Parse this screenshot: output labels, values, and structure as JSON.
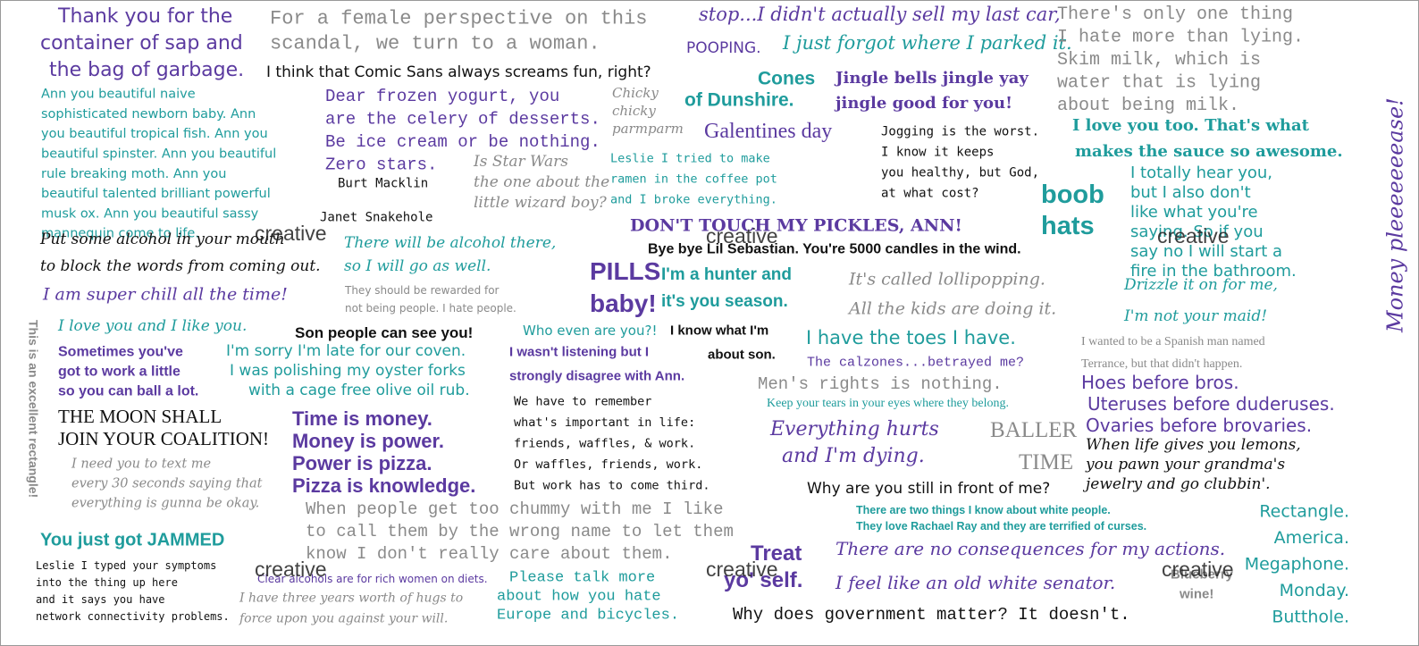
{
  "quotes": [
    {
      "lines": [
        "Thank you for the",
        "container of sap and",
        "the bag of garbage."
      ]
    },
    {
      "lines": [
        "For a female perspective on this",
        "scandal, we turn to a woman."
      ]
    },
    {
      "lines": [
        "POOPING."
      ]
    },
    {
      "lines": [
        "I think that Comic Sans always screams fun, right?"
      ]
    },
    {
      "lines": [
        "stop...I didn't actually sell my last car,"
      ]
    },
    {
      "lines": [
        "I just forgot where I parked it."
      ]
    },
    {
      "lines": [
        "There's only one thing",
        "I hate more than lying.",
        "Skim milk, which is",
        "water that is lying",
        "about being milk."
      ]
    },
    {
      "lines": [
        "Ann you beautiful naive",
        "sophisticated newborn baby. Ann",
        "you beautiful tropical fish. Ann you",
        "beautiful spinster. Ann you beautiful",
        "rule breaking moth. Ann you",
        "beautiful talented brilliant powerful",
        "musk ox. Ann you beautiful sassy",
        "mannequin come to life."
      ]
    },
    {
      "lines": [
        "Dear frozen yogurt, you",
        "are the celery of desserts.",
        "Be ice cream or be nothing.",
        "Zero stars."
      ]
    },
    {
      "lines": [
        "Cones"
      ]
    },
    {
      "lines": [
        "of Dunshire."
      ]
    },
    {
      "lines": [
        "Jingle bells jingle yay",
        "jingle good for you!"
      ]
    },
    {
      "lines": [
        "Chicky",
        "chicky",
        "parmparm"
      ]
    },
    {
      "lines": [
        "Galentines day"
      ]
    },
    {
      "lines": [
        "Jogging is the worst.",
        "I know it keeps",
        "you healthy, but God,",
        "at what cost?"
      ]
    },
    {
      "lines": [
        "I love you too. That's what",
        "makes the sauce so awesome."
      ]
    },
    {
      "lines": [
        "Burt Macklin"
      ]
    },
    {
      "lines": [
        "Janet Snakehole"
      ]
    },
    {
      "lines": [
        "Is Star Wars",
        "the one about the",
        "little wizard boy?"
      ]
    },
    {
      "lines": [
        "Leslie I tried to make",
        "ramen in the coffee pot",
        "and I broke everything."
      ]
    },
    {
      "lines": [
        "boob",
        "hats"
      ]
    },
    {
      "lines": [
        "I totally hear you,",
        "but I also don't",
        "like what you're",
        "saying. So if you",
        "say no I will start a",
        "fire in the bathroom."
      ]
    },
    {
      "lines": [
        "Money pleeeeeeease!"
      ]
    },
    {
      "lines": [
        "DON'T TOUCH MY PICKLES, ANN!"
      ]
    },
    {
      "lines": [
        "Put some alcohol in your mouth",
        "to block the words from coming out."
      ]
    },
    {
      "lines": [
        "There will be alcohol there,",
        "so I will go as well."
      ]
    },
    {
      "lines": [
        "Bye bye Lil Sebastian. You're 5000 candles in the wind."
      ]
    },
    {
      "lines": [
        "PILLS",
        "baby!"
      ]
    },
    {
      "lines": [
        "I'm a hunter and",
        "it's you season."
      ]
    },
    {
      "lines": [
        "It's called lollipopping.",
        "All the kids are doing it."
      ]
    },
    {
      "lines": [
        "Drizzle it on for me,",
        "I'm not your maid!"
      ]
    },
    {
      "lines": [
        "They should be rewarded for",
        "not being people. I hate people."
      ]
    },
    {
      "lines": [
        "I am super chill all the time!"
      ]
    },
    {
      "lines": [
        "I love you and I like you."
      ]
    },
    {
      "lines": [
        "This is an excellent rectangle!"
      ]
    },
    {
      "lines": [
        "Son people can see you!"
      ]
    },
    {
      "lines": [
        "Who even are you?!"
      ]
    },
    {
      "lines": [
        "I know what I'm",
        "about son."
      ]
    },
    {
      "lines": [
        "I have the toes I have."
      ]
    },
    {
      "lines": [
        "I wanted to be a Spanish man named",
        "Terrance, but that didn't happen."
      ]
    },
    {
      "lines": [
        "Sometimes you've",
        "got to work a little",
        "so you can ball a lot."
      ]
    },
    {
      "lines": [
        "I'm sorry I'm late for our coven.",
        "I was polishing my oyster forks",
        "with a cage free olive oil rub."
      ]
    },
    {
      "lines": [
        "I wasn't listening but I",
        "strongly disagree with Ann."
      ]
    },
    {
      "lines": [
        "The calzones...betrayed me?"
      ]
    },
    {
      "lines": [
        "Men's rights is nothing."
      ]
    },
    {
      "lines": [
        "Hoes before bros.",
        "Uteruses before duderuses.",
        "Ovaries before brovaries."
      ]
    },
    {
      "lines": [
        "Keep your tears in your eyes where they belong."
      ]
    },
    {
      "lines": [
        "We have to remember",
        "what's important in life:",
        "friends, waffles, & work.",
        "Or waffles, friends, work.",
        "But work has to come third."
      ]
    },
    {
      "lines": [
        "Time is money.",
        "Money is power.",
        "Power is pizza.",
        "Pizza is knowledge."
      ]
    },
    {
      "lines": [
        "THE MOON SHALL",
        "JOIN YOUR COALITION!"
      ]
    },
    {
      "lines": [
        "Everything hurts",
        "and I'm dying."
      ]
    },
    {
      "lines": [
        "BALLER",
        "TIME"
      ]
    },
    {
      "lines": [
        "When life gives you lemons,",
        "you pawn your grandma's",
        "jewelry and go clubbin'."
      ]
    },
    {
      "lines": [
        "I need you to text me",
        "every 30 seconds saying that",
        "everything is gunna be okay."
      ]
    },
    {
      "lines": [
        "Why are you still in front of me?"
      ]
    },
    {
      "lines": [
        "When people get too chummy with me I like",
        "to call them by the wrong name to let them",
        "know I don't really care about them."
      ]
    },
    {
      "lines": [
        "There are two things I know about white people.",
        "They love Rachael Ray and they are terrified of curses."
      ]
    },
    {
      "lines": [
        "Rectangle.",
        "America.",
        "Megaphone.",
        "Monday.",
        "Butthole."
      ]
    },
    {
      "lines": [
        "You just got JAMMED"
      ]
    },
    {
      "lines": [
        "There are no consequences for my actions.",
        "I feel like an old white senator."
      ]
    },
    {
      "lines": [
        "Leslie I typed your symptoms",
        "into the thing up here",
        "and it says you have",
        "network connectivity problems."
      ]
    },
    {
      "lines": [
        "Clear alcohols are for rich women on diets."
      ]
    },
    {
      "lines": [
        "Treat",
        "yo' self."
      ]
    },
    {
      "lines": [
        "Please talk more",
        "about how you hate",
        "Europe and bicycles."
      ]
    },
    {
      "lines": [
        "I have three years worth of hugs to",
        "force upon you against your will."
      ]
    },
    {
      "lines": [
        "Why does government matter? It doesn't."
      ]
    },
    {
      "lines": [
        "Blueberry",
        "wine!"
      ]
    }
  ],
  "watermark": "creative"
}
